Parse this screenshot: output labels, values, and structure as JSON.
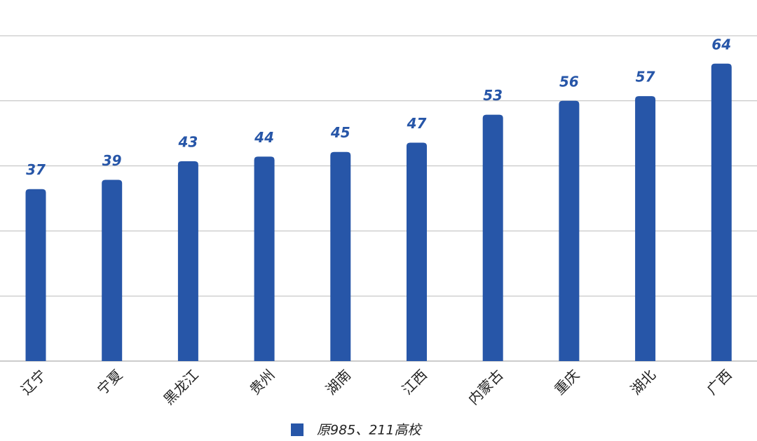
{
  "chart_data": {
    "type": "bar",
    "categories": [
      "辽宁",
      "宁夏",
      "黑龙江",
      "贵州",
      "湖南",
      "江西",
      "内蒙古",
      "重庆",
      "湖北",
      "广西"
    ],
    "series": [
      {
        "name": "原985、211高校",
        "color": "#2756a8",
        "values": [
          37,
          39,
          43,
          44,
          45,
          47,
          53,
          56,
          57,
          64
        ]
      }
    ],
    "ylim": [
      0,
      70
    ],
    "yticks": [
      0,
      14,
      28,
      42,
      56,
      70
    ],
    "grid": true
  }
}
